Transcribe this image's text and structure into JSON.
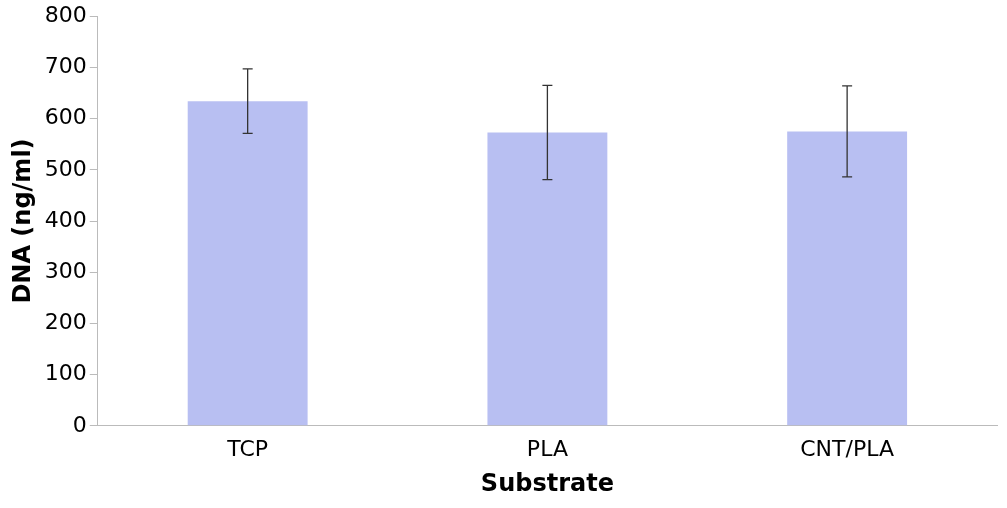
{
  "chart_data": {
    "type": "bar",
    "xlabel": "Substrate",
    "ylabel": "DNA (ng/ml)",
    "categories": [
      "TCP",
      "PLA",
      "CNT/PLA"
    ],
    "values": [
      634,
      573,
      575
    ],
    "errors": [
      63,
      92,
      89
    ],
    "color": "#b8bff2",
    "ylim": [
      0,
      800
    ],
    "yticks": [
      0,
      100,
      200,
      300,
      400,
      500,
      600,
      700,
      800
    ],
    "grid": false,
    "legend": false
  }
}
